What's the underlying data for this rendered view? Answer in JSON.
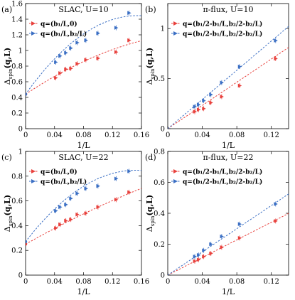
{
  "figure": {
    "xlabel": "1/L",
    "ylabel_main": "Δ",
    "ylabel_sub": "spin",
    "ylabel_arg": "(q,L)"
  },
  "colors": {
    "red": "#e8403c",
    "blue": "#3b6fc4"
  },
  "chart_data": [
    {
      "panel": "(a)",
      "title": "SLAC, U=10",
      "type": "scatter",
      "xlabel": "1/L",
      "ylabel": "Δspin(q,L)",
      "xlim": [
        0,
        0.16
      ],
      "ylim": [
        0,
        1.6
      ],
      "xticks": [
        "0",
        "0.04",
        "0.08",
        "0.12",
        "0.16"
      ],
      "yticks": [
        "0",
        "0.2",
        "0.4",
        "0.6",
        "0.8",
        "1",
        "1.2",
        "1.4",
        "1.6"
      ],
      "series": [
        {
          "name": "q=(b₁/L,0)",
          "color": "red",
          "x": [
            0.0417,
            0.0476,
            0.0556,
            0.0625,
            0.0714,
            0.0833,
            0.1,
            0.125,
            0.1429
          ],
          "y": [
            0.65,
            0.71,
            0.76,
            0.77,
            0.83,
            0.88,
            0.9,
            0.98,
            1.13
          ],
          "fit": {
            "y0": 0.44,
            "slope": 6.2,
            "curv": -12
          }
        },
        {
          "name": "q=(b₁/L,b₂/L)",
          "color": "blue",
          "x": [
            0.0417,
            0.0476,
            0.0556,
            0.0625,
            0.0714,
            0.0833,
            0.1,
            0.125,
            0.1429
          ],
          "y": [
            0.85,
            0.93,
            0.97,
            1.03,
            1.1,
            1.13,
            1.22,
            1.29,
            1.48
          ],
          "fit": {
            "y0": 0.44,
            "slope": 13,
            "curv": -42
          }
        }
      ]
    },
    {
      "panel": "(b)",
      "title": "π-flux, U=10",
      "type": "scatter",
      "xlabel": "1/L",
      "ylabel": "Δspin(q,L)",
      "xlim": [
        0,
        0.14
      ],
      "ylim": [
        0,
        1.25
      ],
      "xticks": [
        "0",
        "0.04",
        "0.08",
        "0.12"
      ],
      "yticks": [
        "0",
        "0.5",
        "1"
      ],
      "series": [
        {
          "name": "q=(b₁/2-b₁/L,b₂/2-b₂/L)",
          "color": "red",
          "x": [
            0.0313,
            0.0357,
            0.0417,
            0.05,
            0.0625,
            0.0833,
            0.125
          ],
          "y": [
            0.17,
            0.19,
            0.2,
            0.26,
            0.32,
            0.43,
            0.7
          ],
          "fit": {
            "y0": 0,
            "slope": 5.8,
            "curv": 0
          }
        },
        {
          "name": "q=(b₁/2-b₁/L,b₂/2-b₂/L)",
          "color": "blue",
          "x": [
            0.0313,
            0.0357,
            0.0417,
            0.05,
            0.0625,
            0.0833,
            0.125
          ],
          "y": [
            0.22,
            0.24,
            0.28,
            0.34,
            0.46,
            0.62,
            0.88
          ],
          "fit": {
            "y0": 0,
            "slope": 7.3,
            "curv": 0
          }
        }
      ]
    },
    {
      "panel": "(c)",
      "title": "SLAC, U=22",
      "type": "scatter",
      "xlabel": "1/L",
      "ylabel": "Δspin(q,L)",
      "xlim": [
        0,
        0.16
      ],
      "ylim": [
        0,
        1.0
      ],
      "xticks": [
        "0",
        "0.04",
        "0.08",
        "0.12",
        "0.16"
      ],
      "yticks": [
        "0",
        "0.2",
        "0.4",
        "0.6",
        "0.8",
        "1"
      ],
      "series": [
        {
          "name": "q=(b₁/L,0)",
          "color": "red",
          "x": [
            0.0417,
            0.0476,
            0.0556,
            0.0625,
            0.0714,
            0.0833,
            0.1,
            0.125,
            0.1429
          ],
          "y": [
            0.38,
            0.41,
            0.44,
            0.45,
            0.49,
            0.5,
            0.55,
            0.61,
            0.67
          ],
          "fit": {
            "y0": 0.25,
            "slope": 3.3,
            "curv": -3
          }
        },
        {
          "name": "q=(b₁/L,b₂/L)",
          "color": "blue",
          "x": [
            0.0417,
            0.0476,
            0.0556,
            0.0625,
            0.0714,
            0.0833,
            0.1,
            0.125,
            0.1429
          ],
          "y": [
            0.52,
            0.55,
            0.57,
            0.62,
            0.66,
            0.7,
            0.72,
            0.78,
            0.84
          ],
          "fit": {
            "y0": 0.27,
            "slope": 7.6,
            "curv": -25
          }
        }
      ]
    },
    {
      "panel": "(d)",
      "title": "π-flux, U=22",
      "type": "scatter",
      "xlabel": "1/L",
      "ylabel": "Δspin(q,L)",
      "xlim": [
        0,
        0.14
      ],
      "ylim": [
        0,
        0.8
      ],
      "xticks": [
        "0",
        "0.04",
        "0.08",
        "0.12"
      ],
      "yticks": [
        "0",
        "0.2",
        "0.4",
        "0.6",
        "0.8"
      ],
      "series": [
        {
          "name": "q=(b₁/2-b₁/L,b₂/2-b₂/L)",
          "color": "red",
          "x": [
            0.0313,
            0.0357,
            0.0417,
            0.05,
            0.0625,
            0.0833,
            0.125
          ],
          "y": [
            0.09,
            0.1,
            0.12,
            0.14,
            0.18,
            0.24,
            0.35
          ],
          "fit": {
            "y0": 0,
            "slope": 2.85,
            "curv": 0
          }
        },
        {
          "name": "q=(b₁/2-b₁/L,b₂/2-b₂/L)",
          "color": "blue",
          "x": [
            0.0313,
            0.0357,
            0.0417,
            0.05,
            0.0625,
            0.0833,
            0.125
          ],
          "y": [
            0.12,
            0.13,
            0.16,
            0.2,
            0.25,
            0.33,
            0.46
          ],
          "fit": {
            "y0": 0,
            "slope": 3.75,
            "curv": 0
          }
        }
      ]
    }
  ]
}
